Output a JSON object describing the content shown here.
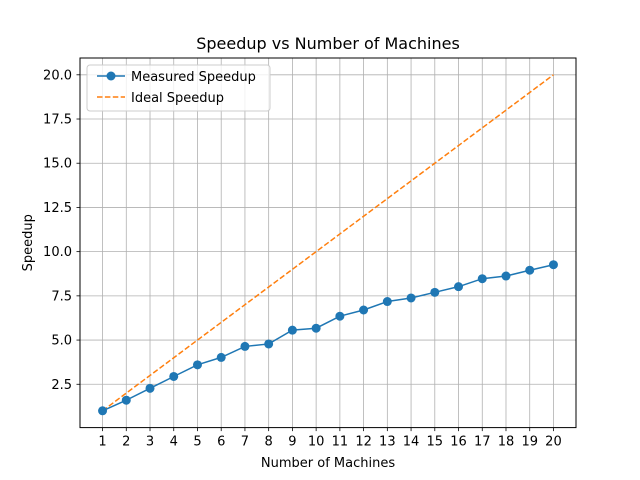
{
  "chart_data": {
    "type": "line",
    "title": "Speedup vs Number of Machines",
    "xlabel": "Number of Machines",
    "ylabel": "Speedup",
    "x": [
      1,
      2,
      3,
      4,
      5,
      6,
      7,
      8,
      9,
      10,
      11,
      12,
      13,
      14,
      15,
      16,
      17,
      18,
      19,
      20
    ],
    "x_ticks": [
      "1",
      "2",
      "3",
      "4",
      "5",
      "6",
      "7",
      "8",
      "9",
      "10",
      "11",
      "12",
      "13",
      "14",
      "15",
      "16",
      "17",
      "18",
      "19",
      "20"
    ],
    "y_ticks": [
      "2.5",
      "5.0",
      "7.5",
      "10.0",
      "12.5",
      "15.0",
      "17.5",
      "20.0"
    ],
    "xlim": [
      0.05,
      20.95
    ],
    "ylim": [
      0.05,
      20.95
    ],
    "grid": true,
    "legend_position": "top-left",
    "series": [
      {
        "name": "Measured Speedup",
        "color": "#1f77b4",
        "style": "solid-markers",
        "values": [
          1.0,
          1.6,
          2.27,
          2.94,
          3.6,
          4.02,
          4.64,
          4.78,
          5.56,
          5.67,
          6.35,
          6.7,
          7.18,
          7.38,
          7.7,
          8.02,
          8.47,
          8.62,
          8.95,
          9.26
        ]
      },
      {
        "name": "Ideal Speedup",
        "color": "#ff7f0e",
        "style": "dashed",
        "values": [
          1,
          2,
          3,
          4,
          5,
          6,
          7,
          8,
          9,
          10,
          11,
          12,
          13,
          14,
          15,
          16,
          17,
          18,
          19,
          20
        ]
      }
    ]
  }
}
